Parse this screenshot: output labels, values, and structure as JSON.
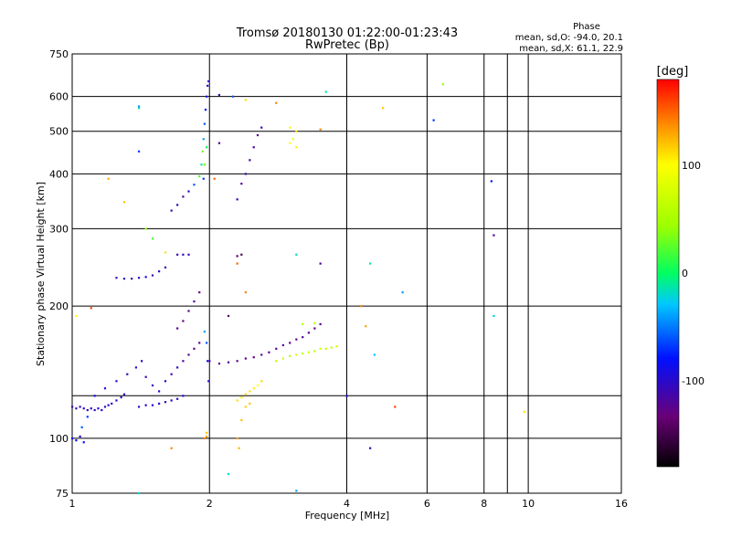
{
  "header": {
    "title_line1": "Tromsø 20180130 01:22:00-01:23:43",
    "title_line2": "RwPretec (Bp)",
    "stats_heading": "Phase",
    "stats_o": "mean, sd,O: -94.0, 20.1",
    "stats_x": "mean, sd,X:  61.1, 22.9"
  },
  "colorbar": {
    "unit": "[deg]",
    "min": -180,
    "max": 180,
    "ticks": [
      {
        "value": 100,
        "label": "100"
      },
      {
        "value": 0,
        "label": "0"
      },
      {
        "value": -100,
        "label": "-100"
      }
    ]
  },
  "chart_data": {
    "type": "scatter",
    "title": "Tromsø 20180130 01:22:00-01:23:43",
    "subtitle": "RwPretec (Bp)",
    "xlabel": "Frequency [MHz]",
    "ylabel": "Stationary phase Virtual Height [km]",
    "xscale": "log",
    "yscale": "log",
    "xlim": [
      1,
      16
    ],
    "ylim": [
      75,
      750
    ],
    "xticks": [
      {
        "value": 1,
        "label": "1"
      },
      {
        "value": 2,
        "label": "2"
      },
      {
        "value": 4,
        "label": "4"
      },
      {
        "value": 6,
        "label": "6"
      },
      {
        "value": 8,
        "label": "8"
      },
      {
        "value": 10,
        "label": "10"
      },
      {
        "value": 16,
        "label": "16"
      }
    ],
    "yticks": [
      {
        "value": 75,
        "label": "75"
      },
      {
        "value": 100,
        "label": "100"
      },
      {
        "value": 200,
        "label": "200"
      },
      {
        "value": 300,
        "label": "300"
      },
      {
        "value": 400,
        "label": "400"
      },
      {
        "value": 500,
        "label": "500"
      },
      {
        "value": 600,
        "label": "600"
      },
      {
        "value": 750,
        "label": "750"
      }
    ],
    "grid_x": [
      2,
      4,
      6,
      8,
      9,
      10
    ],
    "grid_y": [
      100,
      125,
      200,
      300,
      400,
      500,
      600
    ],
    "color_scale": "phase, -180 to 180 deg",
    "points": [
      {
        "f": 1.0,
        "h": 118,
        "p": -110
      },
      {
        "f": 1.02,
        "h": 117,
        "p": -105
      },
      {
        "f": 1.04,
        "h": 118,
        "p": -100
      },
      {
        "f": 1.06,
        "h": 117,
        "p": -95
      },
      {
        "f": 1.08,
        "h": 116,
        "p": -110
      },
      {
        "f": 1.1,
        "h": 117,
        "p": -100
      },
      {
        "f": 1.12,
        "h": 116,
        "p": -105
      },
      {
        "f": 1.14,
        "h": 117,
        "p": -95
      },
      {
        "f": 1.16,
        "h": 116,
        "p": -100
      },
      {
        "f": 1.18,
        "h": 118,
        "p": -108
      },
      {
        "f": 1.2,
        "h": 119,
        "p": -100
      },
      {
        "f": 1.22,
        "h": 120,
        "p": -95
      },
      {
        "f": 1.25,
        "h": 122,
        "p": -100
      },
      {
        "f": 1.28,
        "h": 124,
        "p": -105
      },
      {
        "f": 1.3,
        "h": 126,
        "p": -98
      },
      {
        "f": 1.0,
        "h": 100,
        "p": -90
      },
      {
        "f": 1.02,
        "h": 99,
        "p": -85
      },
      {
        "f": 1.04,
        "h": 101,
        "p": -95
      },
      {
        "f": 1.06,
        "h": 98,
        "p": -88
      },
      {
        "f": 1.05,
        "h": 106,
        "p": -60
      },
      {
        "f": 1.08,
        "h": 112,
        "p": -70
      },
      {
        "f": 1.12,
        "h": 125,
        "p": -90
      },
      {
        "f": 1.18,
        "h": 130,
        "p": -95
      },
      {
        "f": 1.25,
        "h": 135,
        "p": -100
      },
      {
        "f": 1.32,
        "h": 140,
        "p": -105
      },
      {
        "f": 1.38,
        "h": 145,
        "p": -95
      },
      {
        "f": 1.42,
        "h": 150,
        "p": -100
      },
      {
        "f": 1.45,
        "h": 138,
        "p": -110
      },
      {
        "f": 1.4,
        "h": 118,
        "p": -100
      },
      {
        "f": 1.45,
        "h": 119,
        "p": -105
      },
      {
        "f": 1.5,
        "h": 119,
        "p": -95
      },
      {
        "f": 1.55,
        "h": 120,
        "p": -100
      },
      {
        "f": 1.6,
        "h": 121,
        "p": -110
      },
      {
        "f": 1.65,
        "h": 122,
        "p": -100
      },
      {
        "f": 1.7,
        "h": 123,
        "p": -105
      },
      {
        "f": 1.75,
        "h": 125,
        "p": -95
      },
      {
        "f": 1.5,
        "h": 132,
        "p": -100
      },
      {
        "f": 1.55,
        "h": 128,
        "p": -105
      },
      {
        "f": 1.6,
        "h": 135,
        "p": -95
      },
      {
        "f": 1.65,
        "h": 140,
        "p": -110
      },
      {
        "f": 1.7,
        "h": 145,
        "p": -100
      },
      {
        "f": 1.75,
        "h": 150,
        "p": -115
      },
      {
        "f": 1.8,
        "h": 155,
        "p": -120
      },
      {
        "f": 1.85,
        "h": 160,
        "p": -125
      },
      {
        "f": 1.9,
        "h": 165,
        "p": -130
      },
      {
        "f": 1.7,
        "h": 178,
        "p": -120
      },
      {
        "f": 1.75,
        "h": 185,
        "p": -130
      },
      {
        "f": 1.8,
        "h": 195,
        "p": -125
      },
      {
        "f": 1.85,
        "h": 205,
        "p": -120
      },
      {
        "f": 1.9,
        "h": 215,
        "p": -130
      },
      {
        "f": 1.95,
        "h": 175,
        "p": -40
      },
      {
        "f": 1.97,
        "h": 165,
        "p": -60
      },
      {
        "f": 1.98,
        "h": 150,
        "p": -80
      },
      {
        "f": 1.99,
        "h": 135,
        "p": -100
      },
      {
        "f": 1.95,
        "h": 100,
        "p": 140
      },
      {
        "f": 1.97,
        "h": 101,
        "p": 130
      },
      {
        "f": 1.97,
        "h": 103,
        "p": 120
      },
      {
        "f": 1.25,
        "h": 232,
        "p": -110
      },
      {
        "f": 1.3,
        "h": 231,
        "p": -100
      },
      {
        "f": 1.35,
        "h": 231,
        "p": -105
      },
      {
        "f": 1.4,
        "h": 232,
        "p": -100
      },
      {
        "f": 1.45,
        "h": 233,
        "p": -95
      },
      {
        "f": 1.5,
        "h": 235,
        "p": -110
      },
      {
        "f": 1.55,
        "h": 240,
        "p": -100
      },
      {
        "f": 1.6,
        "h": 245,
        "p": -105
      },
      {
        "f": 1.7,
        "h": 262,
        "p": -110
      },
      {
        "f": 1.75,
        "h": 262,
        "p": -100
      },
      {
        "f": 1.8,
        "h": 262,
        "p": -105
      },
      {
        "f": 1.65,
        "h": 330,
        "p": -110
      },
      {
        "f": 1.7,
        "h": 340,
        "p": -105
      },
      {
        "f": 1.75,
        "h": 355,
        "p": -120
      },
      {
        "f": 1.8,
        "h": 365,
        "p": -100
      },
      {
        "f": 1.85,
        "h": 378,
        "p": -60
      },
      {
        "f": 1.9,
        "h": 395,
        "p": 20
      },
      {
        "f": 1.92,
        "h": 420,
        "p": -10
      },
      {
        "f": 1.93,
        "h": 450,
        "p": 30
      },
      {
        "f": 1.94,
        "h": 480,
        "p": -40
      },
      {
        "f": 1.95,
        "h": 520,
        "p": -60
      },
      {
        "f": 1.96,
        "h": 560,
        "p": -80
      },
      {
        "f": 1.97,
        "h": 600,
        "p": -90
      },
      {
        "f": 1.98,
        "h": 635,
        "p": -95
      },
      {
        "f": 1.99,
        "h": 650,
        "p": -100
      },
      {
        "f": 1.95,
        "h": 420,
        "p": 30
      },
      {
        "f": 1.94,
        "h": 390,
        "p": -70
      },
      {
        "f": 1.97,
        "h": 460,
        "p": 0
      },
      {
        "f": 2.0,
        "h": 150,
        "p": -120
      },
      {
        "f": 2.1,
        "h": 148,
        "p": -130
      },
      {
        "f": 2.2,
        "h": 149,
        "p": -120
      },
      {
        "f": 2.3,
        "h": 150,
        "p": -130
      },
      {
        "f": 2.4,
        "h": 152,
        "p": -125
      },
      {
        "f": 2.5,
        "h": 153,
        "p": -130
      },
      {
        "f": 2.6,
        "h": 155,
        "p": -120
      },
      {
        "f": 2.7,
        "h": 157,
        "p": -125
      },
      {
        "f": 2.8,
        "h": 160,
        "p": -130
      },
      {
        "f": 2.9,
        "h": 163,
        "p": -120
      },
      {
        "f": 3.0,
        "h": 165,
        "p": -125
      },
      {
        "f": 3.1,
        "h": 168,
        "p": -130
      },
      {
        "f": 3.2,
        "h": 170,
        "p": -120
      },
      {
        "f": 3.3,
        "h": 174,
        "p": -125
      },
      {
        "f": 3.4,
        "h": 178,
        "p": -130
      },
      {
        "f": 3.5,
        "h": 182,
        "p": -125
      },
      {
        "f": 2.8,
        "h": 150,
        "p": 60
      },
      {
        "f": 2.9,
        "h": 152,
        "p": 70
      },
      {
        "f": 3.0,
        "h": 154,
        "p": 60
      },
      {
        "f": 3.1,
        "h": 155,
        "p": 80
      },
      {
        "f": 3.2,
        "h": 156,
        "p": 65
      },
      {
        "f": 3.3,
        "h": 157,
        "p": 70
      },
      {
        "f": 3.4,
        "h": 158,
        "p": 60
      },
      {
        "f": 3.5,
        "h": 160,
        "p": 75
      },
      {
        "f": 3.6,
        "h": 160,
        "p": 65
      },
      {
        "f": 3.7,
        "h": 161,
        "p": 70
      },
      {
        "f": 3.8,
        "h": 162,
        "p": 80
      },
      {
        "f": 2.3,
        "h": 122,
        "p": 110
      },
      {
        "f": 2.35,
        "h": 124,
        "p": 105
      },
      {
        "f": 2.4,
        "h": 126,
        "p": 115
      },
      {
        "f": 2.45,
        "h": 128,
        "p": 110
      },
      {
        "f": 2.5,
        "h": 130,
        "p": 105
      },
      {
        "f": 2.55,
        "h": 132,
        "p": 100
      },
      {
        "f": 2.6,
        "h": 135,
        "p": 110
      },
      {
        "f": 2.4,
        "h": 118,
        "p": 115
      },
      {
        "f": 2.45,
        "h": 120,
        "p": 120
      },
      {
        "f": 2.35,
        "h": 110,
        "p": 120
      },
      {
        "f": 2.3,
        "h": 100,
        "p": 130
      },
      {
        "f": 2.32,
        "h": 95,
        "p": 125
      },
      {
        "f": 2.3,
        "h": 350,
        "p": -110
      },
      {
        "f": 2.35,
        "h": 380,
        "p": -120
      },
      {
        "f": 2.4,
        "h": 400,
        "p": -110
      },
      {
        "f": 2.45,
        "h": 430,
        "p": -120
      },
      {
        "f": 2.5,
        "h": 460,
        "p": -115
      },
      {
        "f": 2.55,
        "h": 490,
        "p": -120
      },
      {
        "f": 2.6,
        "h": 510,
        "p": -110
      },
      {
        "f": 3.0,
        "h": 470,
        "p": 100
      },
      {
        "f": 3.05,
        "h": 480,
        "p": 90
      },
      {
        "f": 3.1,
        "h": 500,
        "p": 110
      },
      {
        "f": 3.0,
        "h": 510,
        "p": 95
      },
      {
        "f": 3.1,
        "h": 460,
        "p": 105
      },
      {
        "f": 2.3,
        "h": 260,
        "p": -140
      },
      {
        "f": 2.35,
        "h": 262,
        "p": -150
      },
      {
        "f": 2.2,
        "h": 190,
        "p": -140
      },
      {
        "f": 3.2,
        "h": 182,
        "p": 60
      },
      {
        "f": 3.4,
        "h": 183,
        "p": 55
      },
      {
        "f": 3.1,
        "h": 262,
        "p": -20
      },
      {
        "f": 3.5,
        "h": 250,
        "p": -120
      },
      {
        "f": 3.1,
        "h": 76,
        "p": -40
      },
      {
        "f": 3.6,
        "h": 615,
        "p": -10
      },
      {
        "f": 3.5,
        "h": 505,
        "p": 140
      },
      {
        "f": 4.3,
        "h": 200,
        "p": 140
      },
      {
        "f": 4.4,
        "h": 180,
        "p": 130
      },
      {
        "f": 4.5,
        "h": 250,
        "p": -10
      },
      {
        "f": 4.6,
        "h": 155,
        "p": -30
      },
      {
        "f": 4.0,
        "h": 125,
        "p": -90
      },
      {
        "f": 4.5,
        "h": 95,
        "p": -110
      },
      {
        "f": 5.1,
        "h": 118,
        "p": 160
      },
      {
        "f": 5.3,
        "h": 215,
        "p": -40
      },
      {
        "f": 4.8,
        "h": 565,
        "p": 120
      },
      {
        "f": 6.2,
        "h": 530,
        "p": -70
      },
      {
        "f": 6.5,
        "h": 640,
        "p": 40
      },
      {
        "f": 8.3,
        "h": 385,
        "p": -80
      },
      {
        "f": 8.4,
        "h": 290,
        "p": -120
      },
      {
        "f": 8.4,
        "h": 190,
        "p": -20
      },
      {
        "f": 9.8,
        "h": 115,
        "p": 110
      },
      {
        "f": 1.4,
        "h": 565,
        "p": -20
      },
      {
        "f": 1.4,
        "h": 570,
        "p": -40
      },
      {
        "f": 1.4,
        "h": 450,
        "p": -70
      },
      {
        "f": 1.4,
        "h": 75,
        "p": -20
      },
      {
        "f": 1.3,
        "h": 345,
        "p": 120
      },
      {
        "f": 1.2,
        "h": 390,
        "p": 130
      },
      {
        "f": 1.45,
        "h": 300,
        "p": 40
      },
      {
        "f": 1.5,
        "h": 285,
        "p": 20
      },
      {
        "f": 1.6,
        "h": 265,
        "p": 110
      },
      {
        "f": 1.65,
        "h": 95,
        "p": 140
      },
      {
        "f": 1.1,
        "h": 198,
        "p": 160
      },
      {
        "f": 1.02,
        "h": 190,
        "p": 100
      },
      {
        "f": 2.2,
        "h": 83,
        "p": -20
      },
      {
        "f": 2.3,
        "h": 250,
        "p": 150
      },
      {
        "f": 2.4,
        "h": 215,
        "p": 140
      },
      {
        "f": 2.25,
        "h": 600,
        "p": -60
      },
      {
        "f": 2.4,
        "h": 590,
        "p": 110
      },
      {
        "f": 2.8,
        "h": 580,
        "p": 140
      },
      {
        "f": 2.1,
        "h": 605,
        "p": -110
      },
      {
        "f": 2.1,
        "h": 470,
        "p": -120
      },
      {
        "f": 2.05,
        "h": 390,
        "p": 150
      }
    ]
  }
}
